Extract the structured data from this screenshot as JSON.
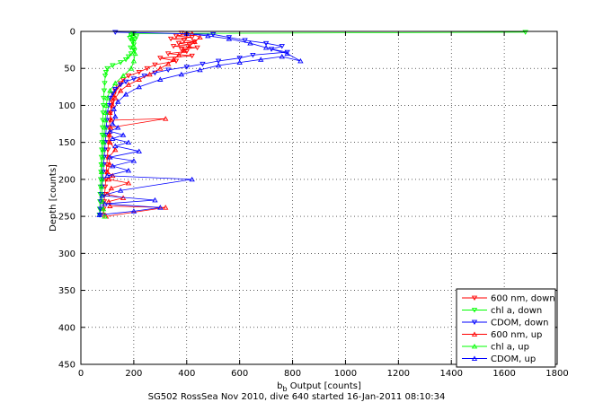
{
  "chart_data": {
    "type": "scatter",
    "title": "",
    "xlabel": "b",
    "xlabel_sub": "b",
    "xlabel_rest": " Output [counts]",
    "ylabel": "Depth [counts]",
    "caption": "SG502 RossSea Nov 2010, dive 640 started 16-Jan-2011 08:10:34",
    "xlim": [
      0,
      1800
    ],
    "ylim": [
      0,
      450
    ],
    "y_reversed": true,
    "grid": true,
    "legend_position": "bottom-right",
    "x_ticks": [
      "0",
      "200",
      "400",
      "600",
      "800",
      "1000",
      "1200",
      "1400",
      "1600",
      "1800"
    ],
    "y_ticks": [
      "0",
      "50",
      "100",
      "150",
      "200",
      "250",
      "300",
      "350",
      "400",
      "450"
    ],
    "series": [
      {
        "name": "600 nm, down",
        "color": "#ff0000",
        "marker": "triangle-down",
        "points": [
          [
            380,
            2
          ],
          [
            400,
            4
          ],
          [
            360,
            6
          ],
          [
            420,
            8
          ],
          [
            340,
            10
          ],
          [
            390,
            12
          ],
          [
            430,
            14
          ],
          [
            370,
            16
          ],
          [
            410,
            18
          ],
          [
            350,
            20
          ],
          [
            440,
            22
          ],
          [
            380,
            24
          ],
          [
            400,
            27
          ],
          [
            330,
            30
          ],
          [
            420,
            33
          ],
          [
            300,
            36
          ],
          [
            360,
            40
          ],
          [
            280,
            45
          ],
          [
            250,
            50
          ],
          [
            220,
            55
          ],
          [
            180,
            60
          ],
          [
            160,
            65
          ],
          [
            150,
            70
          ],
          [
            140,
            75
          ],
          [
            130,
            80
          ],
          [
            125,
            85
          ],
          [
            120,
            90
          ],
          [
            118,
            95
          ],
          [
            115,
            100
          ],
          [
            112,
            110
          ],
          [
            110,
            120
          ],
          [
            108,
            130
          ],
          [
            106,
            140
          ],
          [
            104,
            150
          ],
          [
            102,
            160
          ],
          [
            100,
            170
          ],
          [
            98,
            180
          ],
          [
            96,
            190
          ],
          [
            94,
            200
          ],
          [
            92,
            210
          ],
          [
            90,
            220
          ],
          [
            88,
            230
          ],
          [
            86,
            240
          ],
          [
            84,
            248
          ]
        ]
      },
      {
        "name": "chl a, down",
        "color": "#00ff00",
        "marker": "triangle-down",
        "points": [
          [
            1680,
            1
          ],
          [
            200,
            3
          ],
          [
            190,
            5
          ],
          [
            210,
            7
          ],
          [
            185,
            9
          ],
          [
            205,
            11
          ],
          [
            195,
            14
          ],
          [
            200,
            18
          ],
          [
            188,
            22
          ],
          [
            202,
            26
          ],
          [
            190,
            30
          ],
          [
            180,
            34
          ],
          [
            170,
            38
          ],
          [
            150,
            42
          ],
          [
            120,
            46
          ],
          [
            100,
            50
          ],
          [
            95,
            55
          ],
          [
            92,
            60
          ],
          [
            90,
            70
          ],
          [
            88,
            80
          ],
          [
            86,
            90
          ],
          [
            85,
            100
          ],
          [
            84,
            110
          ],
          [
            83,
            120
          ],
          [
            82,
            130
          ],
          [
            81,
            140
          ],
          [
            80,
            150
          ],
          [
            79,
            160
          ],
          [
            78,
            170
          ],
          [
            77,
            180
          ],
          [
            76,
            190
          ],
          [
            75,
            200
          ],
          [
            74,
            210
          ],
          [
            73,
            220
          ],
          [
            72,
            230
          ],
          [
            71,
            240
          ],
          [
            70,
            248
          ]
        ]
      },
      {
        "name": "CDOM, down",
        "color": "#0000ff",
        "marker": "triangle-down",
        "points": [
          [
            130,
            1
          ],
          [
            500,
            4
          ],
          [
            560,
            8
          ],
          [
            620,
            12
          ],
          [
            700,
            16
          ],
          [
            760,
            20
          ],
          [
            720,
            24
          ],
          [
            780,
            28
          ],
          [
            650,
            32
          ],
          [
            600,
            36
          ],
          [
            520,
            40
          ],
          [
            460,
            44
          ],
          [
            400,
            48
          ],
          [
            330,
            52
          ],
          [
            280,
            56
          ],
          [
            240,
            60
          ],
          [
            200,
            64
          ],
          [
            170,
            68
          ],
          [
            150,
            72
          ],
          [
            130,
            78
          ],
          [
            120,
            84
          ],
          [
            110,
            90
          ],
          [
            105,
            100
          ],
          [
            100,
            110
          ],
          [
            98,
            120
          ],
          [
            96,
            130
          ],
          [
            94,
            140
          ],
          [
            92,
            150
          ],
          [
            90,
            160
          ],
          [
            88,
            170
          ],
          [
            86,
            180
          ],
          [
            84,
            190
          ],
          [
            82,
            200
          ],
          [
            80,
            210
          ],
          [
            78,
            220
          ],
          [
            76,
            230
          ],
          [
            74,
            240
          ],
          [
            72,
            248
          ]
        ]
      },
      {
        "name": "600 nm, up",
        "color": "#ff0000",
        "marker": "triangle-up",
        "points": [
          [
            95,
            250
          ],
          [
            320,
            238
          ],
          [
            110,
            236
          ],
          [
            105,
            230
          ],
          [
            160,
            225
          ],
          [
            100,
            220
          ],
          [
            115,
            212
          ],
          [
            180,
            205
          ],
          [
            105,
            200
          ],
          [
            120,
            195
          ],
          [
            100,
            190
          ],
          [
            110,
            180
          ],
          [
            105,
            170
          ],
          [
            130,
            160
          ],
          [
            110,
            150
          ],
          [
            108,
            140
          ],
          [
            112,
            130
          ],
          [
            320,
            118
          ],
          [
            115,
            120
          ],
          [
            110,
            110
          ],
          [
            120,
            100
          ],
          [
            130,
            90
          ],
          [
            150,
            80
          ],
          [
            180,
            72
          ],
          [
            220,
            65
          ],
          [
            260,
            58
          ],
          [
            300,
            50
          ],
          [
            330,
            44
          ],
          [
            350,
            38
          ],
          [
            370,
            32
          ],
          [
            390,
            26
          ],
          [
            410,
            20
          ],
          [
            430,
            14
          ],
          [
            450,
            8
          ],
          [
            420,
            3
          ]
        ]
      },
      {
        "name": "chl a, up",
        "color": "#00ff00",
        "marker": "triangle-up",
        "points": [
          [
            90,
            250
          ],
          [
            85,
            240
          ],
          [
            82,
            230
          ],
          [
            80,
            220
          ],
          [
            78,
            210
          ],
          [
            80,
            200
          ],
          [
            78,
            190
          ],
          [
            80,
            180
          ],
          [
            82,
            170
          ],
          [
            84,
            160
          ],
          [
            86,
            150
          ],
          [
            88,
            140
          ],
          [
            90,
            130
          ],
          [
            92,
            120
          ],
          [
            94,
            110
          ],
          [
            96,
            100
          ],
          [
            100,
            90
          ],
          [
            110,
            80
          ],
          [
            130,
            70
          ],
          [
            160,
            60
          ],
          [
            190,
            50
          ],
          [
            200,
            40
          ],
          [
            205,
            30
          ],
          [
            200,
            20
          ],
          [
            195,
            10
          ],
          [
            190,
            3
          ]
        ]
      },
      {
        "name": "CDOM, up",
        "color": "#0000ff",
        "marker": "triangle-up",
        "points": [
          [
            70,
            248
          ],
          [
            200,
            243
          ],
          [
            300,
            238
          ],
          [
            90,
            233
          ],
          [
            280,
            228
          ],
          [
            80,
            222
          ],
          [
            150,
            215
          ],
          [
            420,
            200
          ],
          [
            100,
            195
          ],
          [
            180,
            188
          ],
          [
            120,
            182
          ],
          [
            200,
            175
          ],
          [
            110,
            170
          ],
          [
            220,
            162
          ],
          [
            130,
            155
          ],
          [
            180,
            150
          ],
          [
            120,
            145
          ],
          [
            160,
            140
          ],
          [
            110,
            135
          ],
          [
            140,
            130
          ],
          [
            120,
            125
          ],
          [
            130,
            115
          ],
          [
            125,
            105
          ],
          [
            140,
            95
          ],
          [
            170,
            85
          ],
          [
            220,
            75
          ],
          [
            300,
            65
          ],
          [
            380,
            58
          ],
          [
            450,
            52
          ],
          [
            520,
            46
          ],
          [
            600,
            42
          ],
          [
            680,
            38
          ],
          [
            760,
            34
          ],
          [
            830,
            40
          ],
          [
            780,
            30
          ],
          [
            700,
            22
          ],
          [
            640,
            16
          ],
          [
            560,
            10
          ],
          [
            480,
            6
          ],
          [
            400,
            3
          ]
        ]
      }
    ]
  }
}
